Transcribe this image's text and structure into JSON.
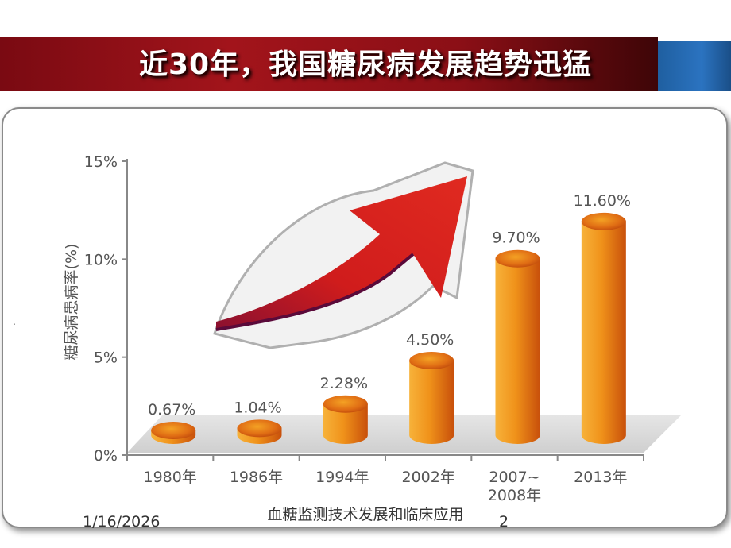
{
  "slide": {
    "title": "近30年，我国糖尿病发展趋势迅猛",
    "date": "1/16/2026",
    "footer_title": "血糖监测技术发展和临床应用",
    "page_number": "2",
    "dot": "."
  },
  "colors": {
    "title_bar": "#a2141b",
    "accent_blue": "#2b73c0",
    "bar_top": "#f29a1a",
    "bar_side": "#d9580c",
    "arrow": "#c81b1b"
  },
  "chart_data": {
    "type": "bar",
    "title": "",
    "xlabel": "",
    "ylabel": "糖尿病患病率(%)",
    "ylim": [
      0,
      15
    ],
    "yticks": [
      "0%",
      "5%",
      "10%",
      "15%"
    ],
    "ytick_values": [
      0,
      5,
      10,
      15
    ],
    "categories": [
      "1980年",
      "1986年",
      "1994年",
      "2002年",
      "2007~2008年",
      "2013年"
    ],
    "category_lines": [
      [
        "1980年"
      ],
      [
        "1986年"
      ],
      [
        "1994年"
      ],
      [
        "2002年"
      ],
      [
        "2007~",
        "2008年"
      ],
      [
        "2013年"
      ]
    ],
    "values": [
      0.67,
      1.04,
      2.28,
      4.5,
      9.7,
      11.6
    ],
    "data_labels": [
      "0.67%",
      "1.04%",
      "2.28%",
      "4.50%",
      "9.70%",
      "11.60%"
    ],
    "decoration": "rising-trend-arrow",
    "grid": false
  }
}
